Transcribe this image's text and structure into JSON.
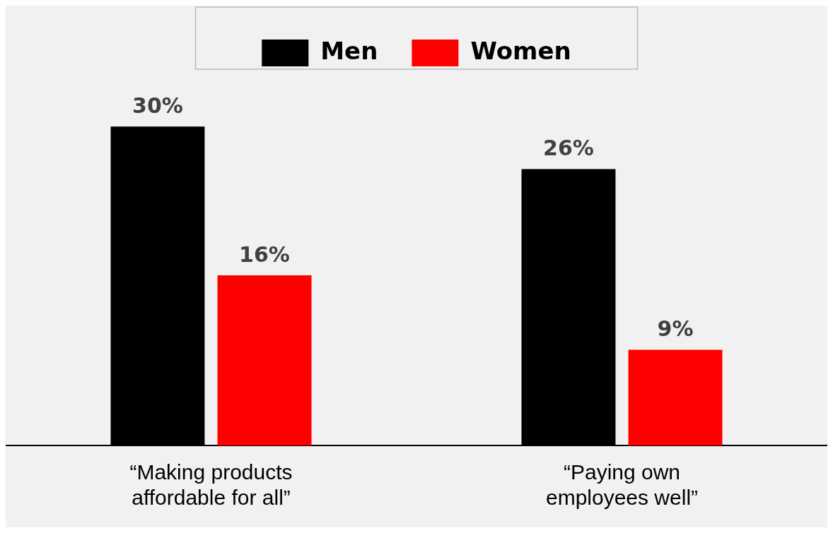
{
  "chart_data": {
    "type": "bar",
    "categories": [
      "“Making products affordable for all”",
      "“Paying own employees well”"
    ],
    "series": [
      {
        "name": "Men",
        "color": "#000000",
        "values": [
          30,
          26
        ],
        "value_labels": [
          "30%",
          "26%"
        ]
      },
      {
        "name": "Women",
        "color": "#ff0000",
        "values": [
          16,
          9
        ],
        "value_labels": [
          "16%",
          "9%"
        ]
      }
    ],
    "legend": "top",
    "grid": false
  }
}
